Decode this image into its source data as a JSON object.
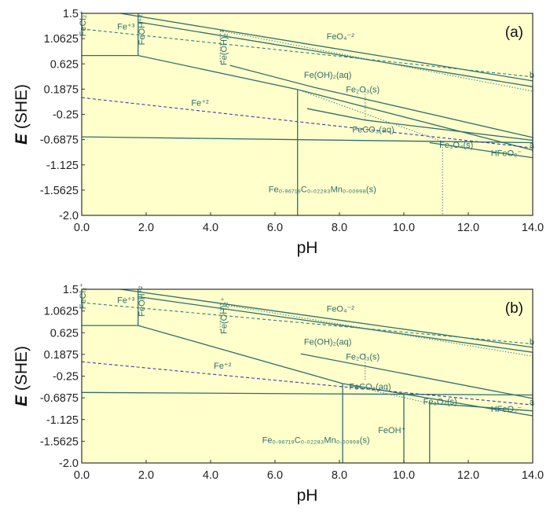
{
  "chart_data": [
    {
      "type": "line",
      "panel_label": "(a)",
      "xlabel": "pH",
      "ylabel_italic": "E",
      "ylabel_rest": " (SHE)",
      "xlim": [
        0,
        14
      ],
      "ylim": [
        -2.0,
        1.5
      ],
      "x_ticks": [
        "0.0",
        "2.0",
        "4.0",
        "6.0",
        "8.0",
        "10.0",
        "12.0",
        "14.0"
      ],
      "y_ticks": [
        "1.5",
        "1.0625",
        "0.625",
        "0.1875",
        "-0.25",
        "-0.6875",
        "-1.125",
        "-1.5625",
        "-2.0"
      ],
      "x_tick_values": [
        0,
        2,
        4,
        6,
        8,
        10,
        12,
        14
      ],
      "y_tick_values": [
        1.5,
        1.0625,
        0.625,
        0.1875,
        -0.25,
        -0.6875,
        -1.125,
        -1.5625,
        -2.0
      ],
      "grid": false,
      "background": "#ffffcc",
      "series": [
        {
          "style": "solid",
          "points": [
            [
              0,
              0.77
            ],
            [
              1.75,
              0.77
            ],
            [
              6.7,
              0.18
            ],
            [
              14,
              -0.87
            ]
          ]
        },
        {
          "style": "solid",
          "points": [
            [
              0,
              -0.64
            ],
            [
              14,
              -0.74
            ]
          ]
        },
        {
          "style": "solid",
          "points": [
            [
              1.2,
              1.5
            ],
            [
              14,
              0.33
            ]
          ]
        },
        {
          "style": "solid",
          "points": [
            [
              1.75,
              1.35
            ],
            [
              14,
              0.23
            ]
          ]
        },
        {
          "style": "solid",
          "points": [
            [
              4.6,
              0.6
            ],
            [
              7.2,
              0.22
            ],
            [
              14,
              -0.65
            ]
          ]
        },
        {
          "style": "solid",
          "points": [
            [
              7.0,
              -0.15
            ],
            [
              8.8,
              -0.35
            ],
            [
              14,
              -0.7
            ]
          ]
        },
        {
          "style": "solid",
          "points": [
            [
              10.8,
              -0.74
            ],
            [
              14,
              -1.0
            ]
          ]
        },
        {
          "style": "solid",
          "points": [
            [
              1.75,
              1.5
            ],
            [
              1.75,
              0.77
            ]
          ]
        },
        {
          "style": "solid",
          "points": [
            [
              6.7,
              0.18
            ],
            [
              6.7,
              -2.0
            ]
          ]
        },
        {
          "style": "solid",
          "points": [
            [
              14,
              0.23
            ],
            [
              14,
              -0.9
            ]
          ]
        },
        {
          "style": "dotted",
          "points": [
            [
              4.3,
              1.2
            ],
            [
              4.3,
              0.65
            ]
          ]
        },
        {
          "style": "dotted",
          "points": [
            [
              8.8,
              0.2
            ],
            [
              8.8,
              -0.35
            ]
          ]
        },
        {
          "style": "dotted",
          "points": [
            [
              11.2,
              -0.72
            ],
            [
              11.2,
              -2.0
            ]
          ]
        },
        {
          "style": "dotted",
          "points": [
            [
              4.3,
              1.2
            ],
            [
              14,
              0.15
            ]
          ]
        },
        {
          "style": "dotted",
          "points": [
            [
              6.7,
              0.18
            ],
            [
              11.2,
              -0.72
            ]
          ]
        },
        {
          "style": "dashed",
          "color": "#2f7f78",
          "points": [
            [
              0,
              1.23
            ],
            [
              14,
              0.4
            ]
          ]
        },
        {
          "style": "dashed",
          "color": "#3b3bb0",
          "points": [
            [
              0,
              0.04
            ],
            [
              14,
              -0.83
            ]
          ]
        }
      ],
      "labels": [
        {
          "text": "FeCl₂⁺",
          "x": 0.12,
          "y": 1.1,
          "rot": -90
        },
        {
          "text": "Fe⁺³",
          "x": 1.1,
          "y": 1.22
        },
        {
          "text": "FeOH⁺²",
          "x": 1.95,
          "y": 0.95,
          "rot": -90
        },
        {
          "text": "FeO₄⁻²",
          "x": 7.6,
          "y": 1.05
        },
        {
          "text": "Fe(OH)₂⁺",
          "x": 4.5,
          "y": 0.6,
          "rot": -90
        },
        {
          "text": "Fe(OH)₂(aq)",
          "x": 6.9,
          "y": 0.38
        },
        {
          "text": "Fe₂O₃(s)",
          "x": 8.2,
          "y": 0.13
        },
        {
          "text": "Fe⁺²",
          "x": 3.4,
          "y": -0.1
        },
        {
          "text": "FeCO₃(aq)",
          "x": 8.4,
          "y": -0.56
        },
        {
          "text": "Fe₃O₄(s)",
          "x": 11.1,
          "y": -0.83
        },
        {
          "text": "HFeO₂⁻",
          "x": 12.7,
          "y": -0.97
        },
        {
          "text": "b",
          "x": 13.9,
          "y": 0.38
        },
        {
          "text": "a",
          "x": 13.9,
          "y": -0.83
        },
        {
          "text": "Fe₀.₉₆₇₁₉C₀.₀₂₂₈₃Mn₀.₀₀₉₉₈(s)",
          "x": 5.8,
          "y": -1.6
        }
      ]
    },
    {
      "type": "line",
      "panel_label": "(b)",
      "xlabel": "pH",
      "ylabel_italic": "E",
      "ylabel_rest": " (SHE)",
      "xlim": [
        0,
        14
      ],
      "ylim": [
        -2.0,
        1.5
      ],
      "x_ticks": [
        "0.0",
        "2.0",
        "4.0",
        "6.0",
        "8.0",
        "10.0",
        "12.0",
        "14.0"
      ],
      "y_ticks": [
        "1.5",
        "1.0625",
        "0.625",
        "0.1875",
        "-0.25",
        "-0.6875",
        "-1.125",
        "-1.5625",
        "-2.0"
      ],
      "x_tick_values": [
        0,
        2,
        4,
        6,
        8,
        10,
        12,
        14
      ],
      "y_tick_values": [
        1.5,
        1.0625,
        0.625,
        0.1875,
        -0.25,
        -0.6875,
        -1.125,
        -1.5625,
        -2.0
      ],
      "grid": false,
      "background": "#ffffcc",
      "series": [
        {
          "style": "solid",
          "points": [
            [
              0,
              0.77
            ],
            [
              1.75,
              0.77
            ],
            [
              8.1,
              -0.4
            ],
            [
              14,
              -1.05
            ]
          ]
        },
        {
          "style": "solid",
          "points": [
            [
              0,
              -0.58
            ],
            [
              14,
              -0.63
            ]
          ]
        },
        {
          "style": "solid",
          "points": [
            [
              1.2,
              1.5
            ],
            [
              14,
              0.33
            ]
          ]
        },
        {
          "style": "solid",
          "points": [
            [
              1.75,
              1.35
            ],
            [
              14,
              0.23
            ]
          ]
        },
        {
          "style": "solid",
          "points": [
            [
              6.8,
              0.2
            ],
            [
              14,
              -0.7
            ]
          ]
        },
        {
          "style": "solid",
          "points": [
            [
              10.8,
              -0.8
            ],
            [
              14,
              -0.95
            ]
          ]
        },
        {
          "style": "solid",
          "points": [
            [
              1.75,
              1.5
            ],
            [
              1.75,
              0.77
            ]
          ]
        },
        {
          "style": "solid",
          "points": [
            [
              8.1,
              -0.4
            ],
            [
              8.1,
              -2.0
            ]
          ]
        },
        {
          "style": "solid",
          "points": [
            [
              10.0,
              -0.58
            ],
            [
              10.0,
              -2.0
            ]
          ]
        },
        {
          "style": "solid",
          "points": [
            [
              10.8,
              -0.8
            ],
            [
              10.8,
              -2.0
            ]
          ]
        },
        {
          "style": "solid",
          "points": [
            [
              14,
              0.23
            ],
            [
              14,
              -0.85
            ]
          ]
        },
        {
          "style": "dotted",
          "points": [
            [
              4.3,
              1.2
            ],
            [
              4.3,
              0.65
            ]
          ]
        },
        {
          "style": "dotted",
          "points": [
            [
              8.8,
              0.2
            ],
            [
              8.8,
              -0.35
            ]
          ]
        },
        {
          "style": "dotted",
          "points": [
            [
              4.3,
              1.2
            ],
            [
              14,
              0.15
            ]
          ]
        },
        {
          "style": "dotted",
          "points": [
            [
              8.1,
              -0.4
            ],
            [
              10.8,
              -0.8
            ]
          ]
        },
        {
          "style": "dashed",
          "color": "#2f7f78",
          "points": [
            [
              0,
              1.23
            ],
            [
              14,
              0.4
            ]
          ]
        },
        {
          "style": "dashed",
          "color": "#3b3bb0",
          "points": [
            [
              0,
              0.04
            ],
            [
              14,
              -0.83
            ]
          ]
        }
      ],
      "labels": [
        {
          "text": "FeCl₂⁺",
          "x": 0.12,
          "y": 1.1,
          "rot": -90
        },
        {
          "text": "Fe⁺³",
          "x": 1.1,
          "y": 1.22
        },
        {
          "text": "FeOH⁺²",
          "x": 1.95,
          "y": 0.95,
          "rot": -90
        },
        {
          "text": "FeO₄⁻²",
          "x": 7.6,
          "y": 1.05
        },
        {
          "text": "Fe(OH)₂⁺",
          "x": 4.5,
          "y": 0.6,
          "rot": -90
        },
        {
          "text": "Fe(OH)₂(aq)",
          "x": 6.9,
          "y": 0.38
        },
        {
          "text": "Fe₂O₃(s)",
          "x": 8.2,
          "y": 0.08
        },
        {
          "text": "Fe⁺²",
          "x": 4.1,
          "y": -0.1
        },
        {
          "text": "FeCO₃(aq)",
          "x": 8.3,
          "y": -0.52
        },
        {
          "text": "Fe₃O₄(s)",
          "x": 10.6,
          "y": -0.82
        },
        {
          "text": "FeOH⁺",
          "x": 9.2,
          "y": -1.4
        },
        {
          "text": "HFeO₂⁻",
          "x": 12.7,
          "y": -0.97
        },
        {
          "text": "b",
          "x": 13.9,
          "y": 0.38
        },
        {
          "text": "a",
          "x": 13.9,
          "y": -0.83
        },
        {
          "text": "Fe₀.₉₆₇₁₉C₀.₀₂₂₈₃Mn₀.₀₀₉₉₈(s)",
          "x": 5.6,
          "y": -1.6
        }
      ]
    }
  ]
}
